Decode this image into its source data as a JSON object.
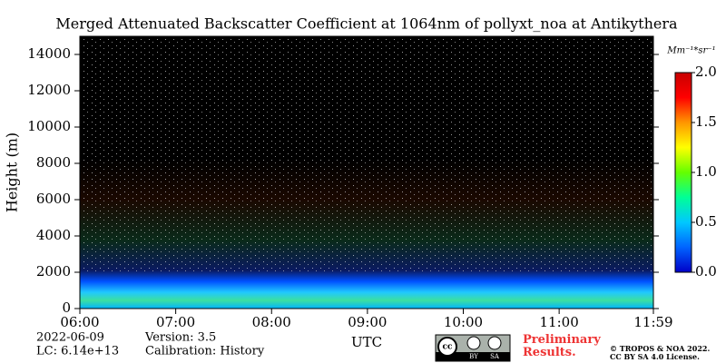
{
  "chart_data": {
    "type": "heatmap",
    "title": "Merged Attenuated Backscatter Coefficient at 1064nm of pollyxt_noa at Antikythera",
    "ylabel": "Height (m)",
    "xlabel": "UTC",
    "xlim": [
      360,
      719
    ],
    "xticks": [
      {
        "value": 360,
        "label": "06:00"
      },
      {
        "value": 420,
        "label": "07:00"
      },
      {
        "value": 480,
        "label": "08:00"
      },
      {
        "value": 540,
        "label": "09:00"
      },
      {
        "value": 600,
        "label": "10:00"
      },
      {
        "value": 660,
        "label": "11:00"
      },
      {
        "value": 719,
        "label": "11:59"
      }
    ],
    "ylim": [
      0,
      15000
    ],
    "yticks": [
      0,
      2000,
      4000,
      6000,
      8000,
      10000,
      12000,
      14000
    ],
    "colorbar_label": "Mm⁻¹*sr⁻¹",
    "clim": [
      0,
      2.0
    ],
    "cticks": [
      {
        "value": 0,
        "label": "0.0"
      },
      {
        "value": 0.5,
        "label": "0.5"
      },
      {
        "value": 1.0,
        "label": "1.0"
      },
      {
        "value": 1.5,
        "label": "1.5"
      },
      {
        "value": 2.0,
        "label": "2.0"
      }
    ],
    "colormap": [
      "#0000c8",
      "#0064ff",
      "#00c8ff",
      "#00ff96",
      "#64ff00",
      "#ffff00",
      "#ff9600",
      "#ff0000",
      "#c80000"
    ],
    "date": "2022-06-09",
    "lc": "LC: 6.14e+13",
    "version": "Version: 3.5",
    "calibration": "Calibration: History",
    "notice": "Preliminary Results.",
    "copyright": [
      "© TROPOS & NOA 2022.",
      "CC BY SA 4.0 License."
    ],
    "badge": [
      "cc",
      "BY",
      "SA"
    ]
  }
}
